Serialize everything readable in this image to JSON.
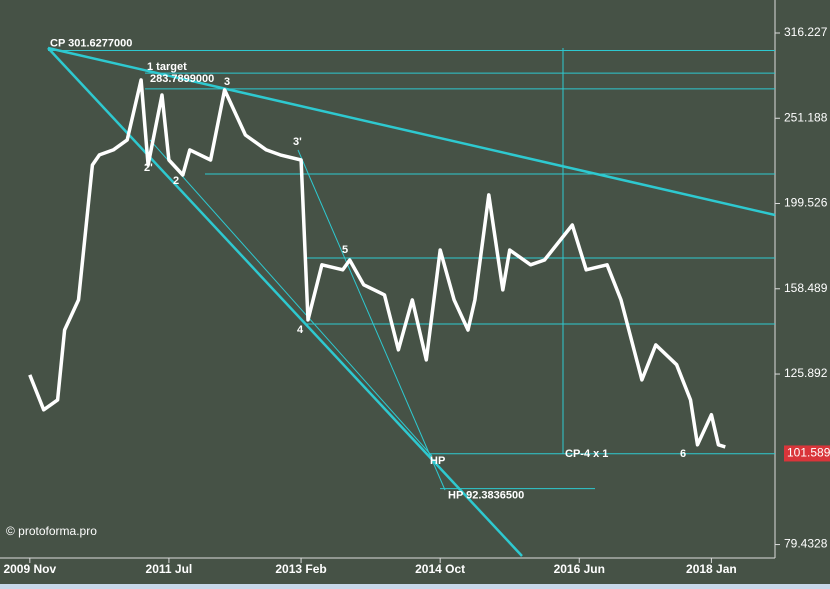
{
  "chart_data": {
    "type": "line",
    "x": [
      "2009-11",
      "2010-01",
      "2010-03",
      "2010-04",
      "2010-06",
      "2010-08",
      "2010-09",
      "2010-11",
      "2011-01",
      "2011-03",
      "2011-04",
      "2011-06",
      "2011-07",
      "2011-09",
      "2011-10",
      "2012-01",
      "2012-03",
      "2012-05",
      "2012-06",
      "2012-09",
      "2012-11",
      "2013-02",
      "2013-03",
      "2013-05",
      "2013-08",
      "2013-09",
      "2013-11",
      "2014-02",
      "2014-04",
      "2014-06",
      "2014-08",
      "2014-10",
      "2014-12",
      "2015-02",
      "2015-03",
      "2015-05",
      "2015-07",
      "2015-08",
      "2015-11",
      "2016-01",
      "2016-05",
      "2016-07",
      "2016-10",
      "2016-12",
      "2017-03",
      "2017-05",
      "2017-08",
      "2017-10",
      "2017-11",
      "2018-01",
      "2018-02",
      "2018-03"
    ],
    "series": [
      {
        "color": "#ffffff",
        "values": [
          125.6,
          114.3,
          117.4,
          141.8,
          153.8,
          221.4,
          227.5,
          230.6,
          236.9,
          278.6,
          221.4,
          267.5,
          224.4,
          215.5,
          230.6,
          224.4,
          271.2,
          250.0,
          240.1,
          230.6,
          227.5,
          224.4,
          145.7,
          169.1,
          166.8,
          171.3,
          160.2,
          155.9,
          134.4,
          153.8,
          130.8,
          176.0,
          153.8,
          141.8,
          153.8,
          204.2,
          158.0,
          176.0,
          169.1,
          171.3,
          188.3,
          166.8,
          169.1,
          153.8,
          123.9,
          136.2,
          129.1,
          117.4,
          104.0,
          112.8,
          104.0,
          103.4
        ]
      }
    ],
    "log_scale": true,
    "xlim": [
      "2009-07",
      "2018-10"
    ],
    "xticks": [
      {
        "value": "2009-11",
        "label": "2009 Nov"
      },
      {
        "value": "2011-07",
        "label": "2011 Jul"
      },
      {
        "value": "2013-02",
        "label": "2013 Feb"
      },
      {
        "value": "2014-10",
        "label": "2014 Oct"
      },
      {
        "value": "2016-06",
        "label": "2016 Jun"
      },
      {
        "value": "2018-01",
        "label": "2018 Jan"
      }
    ],
    "ylim": [
      76.6,
      345.7
    ],
    "yticks": [
      316.227,
      251.188,
      199.526,
      158.489,
      125.892,
      79.4328
    ],
    "levels": [
      {
        "value": 301.6277,
        "label": "CP 301.6277000"
      },
      {
        "value": 283.7899,
        "label": "283.7899000"
      },
      {
        "value": 92.38365,
        "label": "HP 92.3836500"
      }
    ],
    "guide_levels": [
      271.9,
      216.1,
      172.2,
      144.1,
      101.5
    ],
    "last_price": 101.589,
    "line_color": "#2ec9d0",
    "annotations": [
      "1 target",
      "3",
      "2'",
      "2",
      "3'",
      "5",
      "4",
      "HP",
      "CP-4 x 1",
      "6",
      "© protoforma.pro"
    ]
  }
}
